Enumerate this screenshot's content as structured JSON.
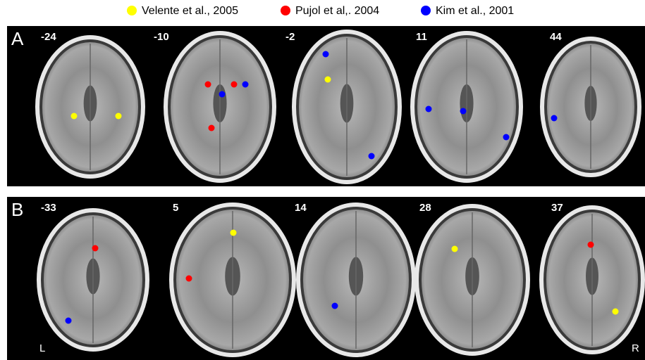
{
  "legend": [
    {
      "name": "Velente et al., 2005",
      "color": "#ffff00"
    },
    {
      "name": "Pujol et al,. 2004",
      "color": "#ff0000"
    },
    {
      "name": "Kim et al., 2001",
      "color": "#0000ff"
    }
  ],
  "panels": [
    {
      "label": "A",
      "slices": [
        "-24",
        "-10",
        "-2",
        "11",
        "44"
      ]
    },
    {
      "label": "B",
      "slices": [
        "-33",
        "5",
        "14",
        "28",
        "37"
      ],
      "left": "L",
      "right": "R"
    }
  ]
}
